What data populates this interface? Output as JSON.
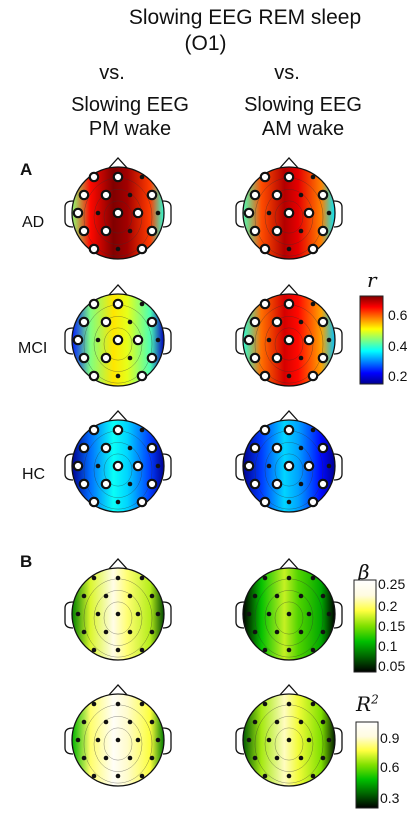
{
  "header": {
    "title_line1": "Slowing EEG REM sleep",
    "title_line2": "(O1)",
    "left_vs": "vs.",
    "left_line1": "Slowing EEG",
    "left_line2": "PM wake",
    "right_vs": "vs.",
    "right_line1": "Slowing EEG",
    "right_line2": "AM wake"
  },
  "panel_a": {
    "label": "A",
    "rows": [
      {
        "label": "AD",
        "left_level": 0.68,
        "right_level": 0.64
      },
      {
        "label": "MCI",
        "left_level": 0.46,
        "right_level": 0.62
      },
      {
        "label": "HC",
        "left_level": 0.3,
        "right_level": 0.27
      }
    ],
    "colorbar": {
      "symbol": "r",
      "ticks": [
        "0.6",
        "0.4",
        "0.2"
      ],
      "range": [
        0.1,
        0.7
      ]
    }
  },
  "panel_b": {
    "label": "B",
    "rows": [
      {
        "label": "",
        "left_level": 0.2,
        "right_level": 0.13
      },
      {
        "label": "",
        "left_level": 0.85,
        "right_level": 0.72
      }
    ],
    "colorbars": [
      {
        "symbol": "β",
        "ticks": [
          "0.25",
          "0.2",
          "0.15",
          "0.1",
          "0.05"
        ],
        "range": [
          0.02,
          0.27
        ]
      },
      {
        "symbol": "R",
        "superscript": "2",
        "ticks": [
          "0.9",
          "0.6",
          "0.3"
        ],
        "range": [
          0.2,
          1.0
        ]
      }
    ]
  },
  "colors": {
    "jet": [
      "#00008f",
      "#0000ff",
      "#0080ff",
      "#00ffff",
      "#80ff80",
      "#ffff00",
      "#ff8000",
      "#ff0000",
      "#800000"
    ],
    "green_white": [
      "#000000",
      "#006400",
      "#00c000",
      "#80e000",
      "#ffff40",
      "#fffbe0",
      "#ffffff"
    ]
  }
}
